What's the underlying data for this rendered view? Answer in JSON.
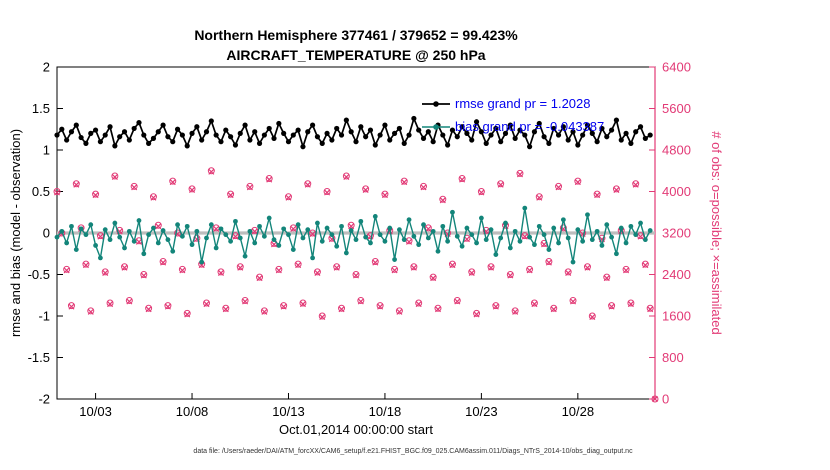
{
  "title": {
    "line1": "Northern Hemisphere 377461 / 379652 = 99.423%",
    "line2": "AIRCRAFT_TEMPERATURE @ 250 hPa"
  },
  "caption": "data file: /Users/raeder/DAI/ATM_forcXX/CAM6_setup/f.e21.FHIST_BGC.f09_025.CAM6assim.011/Diags_NTrS_2014-10/obs_diag_output.nc",
  "chart_data": {
    "type": "line+scatter",
    "title": "Northern Hemisphere 377461 / 379652 = 99.423% | AIRCRAFT_TEMPERATURE @ 250 hPa",
    "x_axis": {
      "label": "Oct.01,2014 00:00:00 start",
      "range_days": [
        0,
        31
      ],
      "ticks": [
        {
          "day": 2,
          "label": "10/03"
        },
        {
          "day": 7,
          "label": "10/08"
        },
        {
          "day": 12,
          "label": "10/13"
        },
        {
          "day": 17,
          "label": "10/18"
        },
        {
          "day": 22,
          "label": "10/23"
        },
        {
          "day": 27,
          "label": "10/28"
        }
      ]
    },
    "left_axis": {
      "label": "rmse and bias (model - observation)",
      "min": -2,
      "max": 2,
      "tick_values": [
        2,
        1.5,
        1,
        0.5,
        0,
        -0.5,
        -1,
        -1.5,
        -2
      ],
      "tick_labels": [
        "2",
        "1.5",
        "1",
        "0.5",
        "0",
        "-0.5",
        "-1",
        "-1.5",
        "-2"
      ],
      "color": "#000000"
    },
    "right_axis": {
      "label": "# of obs: o=possible; ×=assimilated",
      "min": 0,
      "max": 6400,
      "tick_values": [
        6400,
        5600,
        4800,
        4000,
        3200,
        2400,
        1600,
        800,
        0
      ],
      "tick_labels": [
        "6400",
        "5600",
        "4800",
        "4000",
        "3200",
        "2400",
        "1600",
        "800",
        "0"
      ],
      "color": "#e23a76"
    },
    "zero_line": {
      "value": 0,
      "color": "#bdbdbd"
    },
    "time": {
      "start_day": 0,
      "step_day": 0.25,
      "count": 124
    },
    "legend": {
      "text_color": "#0000ee",
      "entries": [
        "rmse grand pr = 1.2028",
        "bias grand pr = -0.043387"
      ]
    },
    "series": [
      {
        "id": "obs_possible",
        "name": "# of obs possible",
        "axis": "right",
        "marker": "circle",
        "line": false,
        "color": "#e23a76",
        "extra_point": {
          "day": 31,
          "value": 0
        },
        "values": [
          4000,
          3200,
          2500,
          1800,
          4150,
          3300,
          2600,
          1700,
          3950,
          3150,
          2450,
          1850,
          4300,
          3250,
          2550,
          1900,
          4100,
          3050,
          2400,
          1750,
          3900,
          3350,
          2650,
          1800,
          4200,
          3200,
          2500,
          1650,
          4050,
          3100,
          2600,
          1850,
          4400,
          3300,
          2450,
          1750,
          3950,
          3150,
          2550,
          1900,
          4100,
          3250,
          2350,
          1700,
          4250,
          3000,
          2500,
          1800,
          3900,
          3300,
          2600,
          1850,
          4150,
          3200,
          2450,
          1600,
          4000,
          3100,
          2550,
          1750,
          4300,
          3350,
          2400,
          1900,
          4050,
          3150,
          2650,
          1800,
          3950,
          3250,
          2500,
          1700,
          4200,
          3050,
          2550,
          1850,
          4100,
          3300,
          2350,
          1750,
          3850,
          3200,
          2600,
          1900,
          4250,
          3100,
          2450,
          1650,
          4000,
          3250,
          2550,
          1800,
          4150,
          3350,
          2400,
          1700,
          4350,
          3150,
          2500,
          1850,
          3900,
          3000,
          2650,
          1750,
          4100,
          3300,
          2450,
          1900,
          4200,
          3200,
          2550,
          1600,
          3950,
          3100,
          2350,
          1800,
          4050,
          3250,
          2500,
          1850,
          4150,
          3150,
          2600,
          1750
        ]
      },
      {
        "id": "obs_assimilated",
        "name": "# of obs assimilated",
        "axis": "right",
        "marker": "x",
        "line": false,
        "color": "#e23a76",
        "extra_point": {
          "day": 31,
          "value": 0
        },
        "values": [
          3980,
          3180,
          2480,
          1780,
          4130,
          3280,
          2580,
          1680,
          3930,
          3130,
          2430,
          1830,
          4280,
          3230,
          2530,
          1880,
          4080,
          3030,
          2380,
          1730,
          3880,
          3330,
          2630,
          1780,
          4180,
          3180,
          2480,
          1630,
          4030,
          3080,
          2580,
          1830,
          4380,
          3280,
          2430,
          1730,
          3930,
          3130,
          2530,
          1880,
          4080,
          3230,
          2330,
          1680,
          4230,
          2980,
          2480,
          1780,
          3880,
          3280,
          2580,
          1830,
          4130,
          3180,
          2430,
          1580,
          3980,
          3080,
          2530,
          1730,
          4280,
          3330,
          2380,
          1880,
          4030,
          3130,
          2630,
          1780,
          3930,
          3230,
          2480,
          1680,
          4180,
          3030,
          2530,
          1830,
          4080,
          3280,
          2330,
          1730,
          3830,
          3180,
          2580,
          1880,
          4230,
          3080,
          2430,
          1630,
          3980,
          3230,
          2530,
          1780,
          4130,
          3330,
          2380,
          1680,
          4330,
          3130,
          2480,
          1830,
          3880,
          2980,
          2630,
          1730,
          4080,
          3280,
          2430,
          1880,
          4180,
          3180,
          2530,
          1580,
          3930,
          3080,
          2330,
          1780,
          4030,
          3230,
          2480,
          1830,
          4130,
          3130,
          2580,
          1730
        ]
      },
      {
        "id": "bias",
        "name": "bias",
        "axis": "left",
        "marker": "filled-circle",
        "line": true,
        "color": "#13857a",
        "values": [
          -0.05,
          0.02,
          -0.12,
          0.08,
          -0.2,
          0.05,
          -0.02,
          0.1,
          -0.15,
          -0.3,
          0.04,
          -0.08,
          0.12,
          -0.05,
          -0.18,
          0.02,
          -0.1,
          0.15,
          -0.25,
          -0.02,
          0.06,
          -0.12,
          0.03,
          -0.08,
          -0.22,
          0.1,
          -0.04,
          0.08,
          -0.14,
          0.02,
          -0.35,
          -0.06,
          0.1,
          -0.18,
          0.05,
          -0.02,
          -0.1,
          0.14,
          -0.06,
          -0.28,
          0.02,
          -0.12,
          0.08,
          -0.04,
          0.18,
          -0.08,
          -0.15,
          0.05,
          -0.02,
          -0.2,
          0.1,
          -0.06,
          0.04,
          -0.3,
          0.12,
          -0.1,
          0.06,
          -0.02,
          -0.16,
          0.08,
          -0.24,
          0.03,
          -0.08,
          0.14,
          -0.05,
          -0.12,
          0.2,
          -0.02,
          -0.1,
          0.06,
          -0.32,
          0.04,
          -0.08,
          0.16,
          -0.04,
          -0.14,
          0.1,
          -0.06,
          0.02,
          -0.22,
          0.08,
          -0.1,
          0.25,
          -0.04,
          -0.16,
          0.06,
          -0.02,
          -0.12,
          0.18,
          -0.08,
          0.04,
          -0.26,
          -0.06,
          0.12,
          -0.18,
          0.02,
          -0.1,
          0.3,
          -0.05,
          -0.14,
          0.08,
          -0.02,
          -0.2,
          0.06,
          -0.12,
          0.16,
          -0.06,
          -0.35,
          0.04,
          -0.1,
          0.22,
          -0.08,
          0.02,
          -0.15,
          0.1,
          -0.05,
          -0.25,
          0.06,
          -0.12,
          0.08,
          -0.02,
          0.12,
          -0.08,
          0.03
        ]
      },
      {
        "id": "rmse",
        "name": "rmse",
        "axis": "left",
        "marker": "filled-circle",
        "line": true,
        "color": "#000000",
        "values": [
          1.18,
          1.25,
          1.12,
          1.22,
          1.3,
          1.15,
          1.08,
          1.2,
          1.24,
          1.1,
          1.18,
          1.28,
          1.05,
          1.16,
          1.22,
          1.12,
          1.26,
          1.33,
          1.18,
          1.08,
          1.14,
          1.22,
          1.3,
          1.16,
          1.1,
          1.25,
          1.18,
          1.05,
          1.2,
          1.28,
          1.12,
          1.22,
          1.35,
          1.18,
          1.1,
          1.24,
          1.16,
          1.06,
          1.2,
          1.3,
          1.12,
          1.22,
          1.08,
          1.18,
          1.26,
          1.14,
          1.32,
          1.2,
          1.1,
          1.18,
          1.24,
          1.04,
          1.22,
          1.3,
          1.16,
          1.08,
          1.2,
          1.12,
          1.26,
          1.18,
          1.36,
          1.22,
          1.1,
          1.28,
          1.16,
          1.24,
          1.06,
          1.18,
          1.3,
          1.12,
          1.2,
          1.26,
          1.08,
          1.18,
          1.38,
          1.24,
          1.14,
          1.22,
          1.1,
          1.3,
          1.18,
          1.06,
          1.24,
          1.16,
          1.28,
          1.2,
          1.12,
          1.34,
          1.22,
          1.08,
          1.18,
          1.26,
          1.1,
          1.2,
          1.3,
          1.14,
          1.24,
          1.18,
          1.04,
          1.22,
          1.32,
          1.16,
          1.08,
          1.26,
          1.18,
          1.28,
          1.12,
          1.22,
          1.06,
          1.18,
          1.3,
          1.2,
          1.1,
          1.26,
          1.16,
          1.24,
          1.36,
          1.12,
          1.2,
          1.08,
          1.22,
          1.28,
          1.14,
          1.18
        ]
      }
    ]
  }
}
